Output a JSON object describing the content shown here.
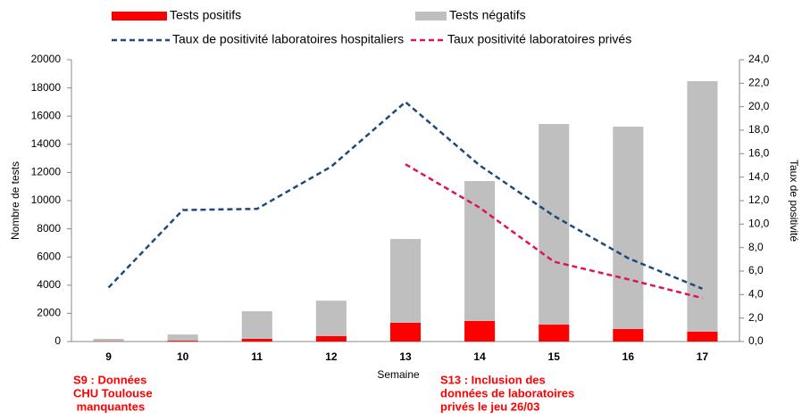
{
  "chart_data": {
    "type": "bar",
    "stacked": true,
    "categories": [
      "9",
      "10",
      "11",
      "12",
      "13",
      "14",
      "15",
      "16",
      "17"
    ],
    "series": [
      {
        "name": "Tests positifs",
        "type": "bar",
        "color": "#ff0000",
        "values": [
          20,
          60,
          190,
          380,
          1330,
          1460,
          1200,
          890,
          700
        ]
      },
      {
        "name": "Tests négatifs",
        "type": "bar",
        "color": "#bfbfbf",
        "values": [
          170,
          440,
          1960,
          2520,
          5950,
          9930,
          14240,
          14360,
          17780
        ]
      },
      {
        "name": "Taux de positivité laboratoires hospitaliers",
        "type": "line",
        "axis": "y2",
        "color": "#1f497d",
        "values": [
          4.6,
          11.2,
          11.3,
          14.9,
          20.4,
          15.0,
          10.7,
          7.1,
          4.5
        ]
      },
      {
        "name": "Taux positivité laboratoires privés",
        "type": "line",
        "axis": "y2",
        "color": "#e0115f",
        "values": [
          null,
          null,
          null,
          null,
          15.1,
          11.4,
          6.8,
          5.3,
          3.7
        ]
      }
    ],
    "xlabel": "Semaine",
    "ylabel": "Nombre de tests",
    "y2label": "Taux de positivité",
    "ylim": [
      0,
      20000
    ],
    "yticks": [
      0,
      2000,
      4000,
      6000,
      8000,
      10000,
      12000,
      14000,
      16000,
      18000,
      20000
    ],
    "y2lim": [
      0,
      24
    ],
    "y2ticks": [
      {
        "value": 0,
        "label": "0,0"
      },
      {
        "value": 2,
        "label": "2,0"
      },
      {
        "value": 4,
        "label": "4,0"
      },
      {
        "value": 6,
        "label": "6,0"
      },
      {
        "value": 8,
        "label": "8,0"
      },
      {
        "value": 10,
        "label": "10,0"
      },
      {
        "value": 12,
        "label": "12,0"
      },
      {
        "value": 14,
        "label": "14,0"
      },
      {
        "value": 16,
        "label": "16,0"
      },
      {
        "value": 18,
        "label": "18,0"
      },
      {
        "value": 20,
        "label": "20,0"
      },
      {
        "value": 22,
        "label": "22,0"
      },
      {
        "value": 24,
        "label": "24,0"
      }
    ],
    "annotations": [
      {
        "lines": [
          "S9 : Données",
          "CHU Toulouse",
          " manquantes"
        ],
        "color": "#ff0000"
      },
      {
        "lines": [
          "S13 : Inclusion des",
          "données de laboratoires",
          "privés le jeu 26/03"
        ],
        "color": "#ff0000"
      }
    ]
  }
}
